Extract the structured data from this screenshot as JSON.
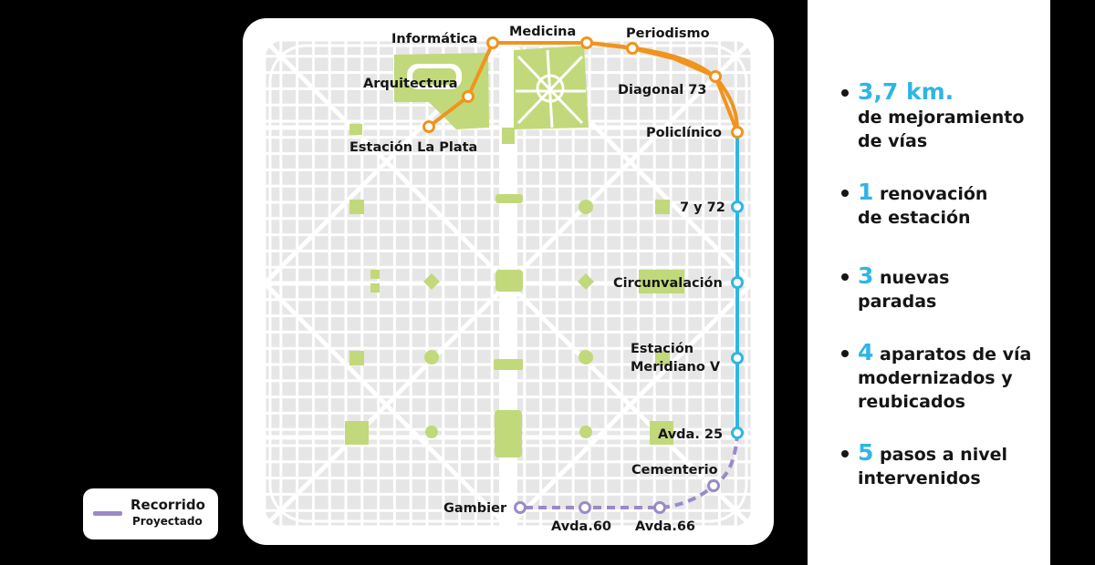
{
  "legend": {
    "line1": "Recorrido",
    "line2": "Proyectado",
    "color": "#9b8ac7"
  },
  "route": {
    "existing_color": "#f0941e",
    "renewed_color": "#2fb5e6",
    "projected_color": "#9b8ac7",
    "stations": {
      "la_plata": "Estación La Plata",
      "arquitectura": "Arquitectura",
      "informatica": "Informática",
      "medicina": "Medicina",
      "periodismo": "Periodismo",
      "diagonal73": "Diagonal 73",
      "policlinico": "Policlínico",
      "siete_y_72": "7 y 72",
      "circunvalacion": "Circunvalación",
      "meridiano_1": "Estación",
      "meridiano_2": "Meridiano V",
      "avda25": "Avda. 25",
      "cementerio": "Cementerio",
      "gambier": "Gambier",
      "avda60": "Avda.60",
      "avda66": "Avda.66"
    }
  },
  "stats": [
    {
      "number": "3,7 km.",
      "line1": "",
      "line2": "de mejoramiento",
      "line3": "de vías"
    },
    {
      "number": "1",
      "line1": " renovación",
      "line2": "de estación",
      "line3": ""
    },
    {
      "number": "3",
      "line1": " nuevas",
      "line2": "paradas",
      "line3": ""
    },
    {
      "number": "4",
      "line1": " aparatos de vía",
      "line2": "modernizados y",
      "line3": "reubicados"
    },
    {
      "number": "5",
      "line1": " pasos a nivel",
      "line2": "intervenidos",
      "line3": ""
    }
  ],
  "colors": {
    "park_green": "#c1d97a",
    "grid_gray": "#e6e6e6",
    "number_blue": "#2fb5e6"
  }
}
